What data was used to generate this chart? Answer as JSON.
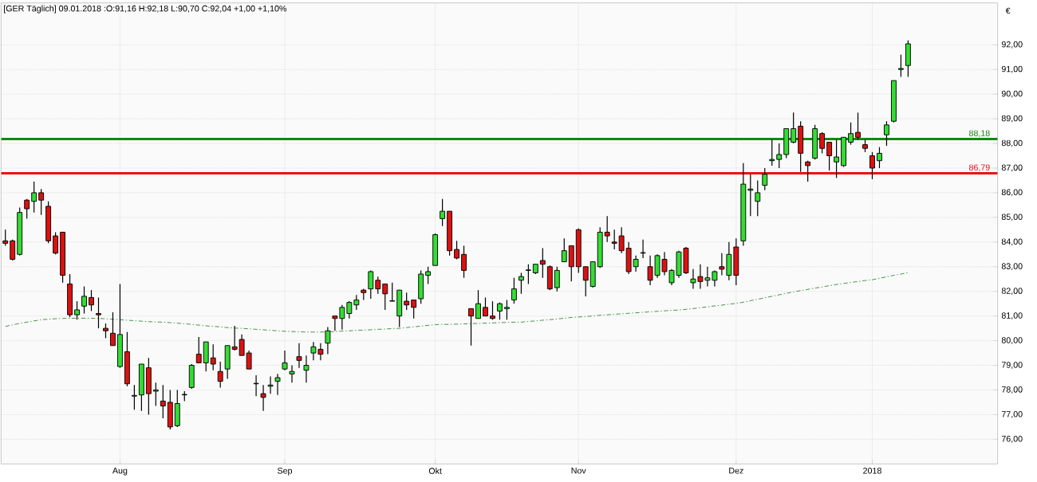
{
  "chart_data": {
    "type": "candlestick",
    "title": "[GER Täglich] 09.01.2018 :O:91,16 H:92,18 L:90,70 C:92,04 +1,00 +1,10%",
    "annotations": [
      "€"
    ],
    "grid": true,
    "ylim": [
      75,
      93.7
    ],
    "yticks": [
      {
        "value": 76,
        "label": "76,00"
      },
      {
        "value": 77,
        "label": "77,00"
      },
      {
        "value": 78,
        "label": "78,00"
      },
      {
        "value": 79,
        "label": "79,00"
      },
      {
        "value": 80,
        "label": "80,00"
      },
      {
        "value": 81,
        "label": "81,00"
      },
      {
        "value": 82,
        "label": "82,00"
      },
      {
        "value": 83,
        "label": "83,00"
      },
      {
        "value": 84,
        "label": "84,00"
      },
      {
        "value": 85,
        "label": "85,00"
      },
      {
        "value": 86,
        "label": "86,00"
      },
      {
        "value": 87,
        "label": "87,00"
      },
      {
        "value": 88,
        "label": "88,00"
      },
      {
        "value": 89,
        "label": "89,00"
      },
      {
        "value": 90,
        "label": "90,00"
      },
      {
        "value": 91,
        "label": "91,00"
      },
      {
        "value": 92,
        "label": "92,00"
      }
    ],
    "ref_lines": [
      {
        "axis": "y",
        "value": 88.18,
        "label": "88,18",
        "color": "#118811"
      },
      {
        "axis": "y",
        "value": 86.79,
        "label": "86,79",
        "color": "#ee1111"
      }
    ],
    "categories": [
      null,
      null,
      null,
      null,
      null,
      null,
      null,
      null,
      null,
      null,
      null,
      null,
      null,
      null,
      null,
      null,
      "Aug",
      null,
      null,
      null,
      null,
      null,
      null,
      null,
      null,
      null,
      null,
      null,
      null,
      null,
      null,
      null,
      null,
      null,
      null,
      null,
      null,
      null,
      null,
      "Sep",
      null,
      null,
      null,
      null,
      null,
      null,
      null,
      null,
      null,
      null,
      null,
      null,
      null,
      null,
      null,
      null,
      null,
      null,
      null,
      null,
      "Okt",
      null,
      null,
      null,
      null,
      null,
      null,
      null,
      null,
      null,
      null,
      null,
      null,
      null,
      null,
      null,
      null,
      null,
      null,
      null,
      "Nov",
      null,
      null,
      null,
      null,
      null,
      null,
      null,
      null,
      null,
      null,
      null,
      null,
      null,
      null,
      null,
      null,
      null,
      null,
      null,
      null,
      null,
      "Dez",
      null,
      null,
      null,
      null,
      null,
      null,
      null,
      null,
      null,
      null,
      null,
      null,
      null,
      null,
      null,
      null,
      null,
      null,
      "2018",
      null,
      null,
      null,
      null,
      null
    ],
    "ohlc": [
      [
        84.05,
        84.5,
        83.85,
        83.95
      ],
      [
        84.05,
        84.1,
        83.25,
        83.3
      ],
      [
        83.5,
        85.4,
        83.45,
        85.2
      ],
      [
        85.7,
        85.75,
        84.95,
        85.35
      ],
      [
        85.65,
        86.45,
        85.2,
        86.0
      ],
      [
        86.0,
        86.15,
        85.1,
        85.7
      ],
      [
        85.45,
        85.65,
        83.95,
        84.05
      ],
      [
        84.25,
        84.4,
        83.5,
        83.55
      ],
      [
        84.4,
        84.4,
        82.35,
        82.65
      ],
      [
        82.3,
        82.7,
        80.95,
        81.05
      ],
      [
        81.05,
        81.6,
        80.85,
        81.25
      ],
      [
        81.4,
        82.2,
        81.1,
        81.8
      ],
      [
        81.75,
        82.05,
        81.2,
        81.45
      ],
      [
        81.1,
        81.75,
        80.5,
        81.05
      ],
      [
        80.5,
        80.7,
        80.1,
        80.4
      ],
      [
        80.3,
        81.15,
        79.8,
        79.8
      ],
      [
        78.95,
        82.3,
        78.9,
        80.25
      ],
      [
        79.55,
        80.35,
        78.15,
        78.25
      ],
      [
        77.75,
        78.2,
        77.2,
        77.78
      ],
      [
        77.8,
        79.05,
        77.15,
        79.05
      ],
      [
        78.9,
        79.3,
        77.0,
        77.85
      ],
      [
        77.95,
        78.3,
        77.35,
        78.0
      ],
      [
        77.55,
        78.2,
        76.85,
        77.35
      ],
      [
        77.5,
        78.0,
        76.4,
        76.5
      ],
      [
        76.55,
        78.0,
        76.5,
        77.45
      ],
      [
        77.8,
        77.95,
        77.55,
        77.82
      ],
      [
        78.1,
        79.05,
        78.05,
        79.0
      ],
      [
        79.45,
        80.15,
        79.1,
        79.1
      ],
      [
        79.1,
        79.95,
        78.75,
        79.95
      ],
      [
        79.3,
        79.85,
        78.8,
        79.05
      ],
      [
        78.75,
        79.15,
        78.1,
        78.35
      ],
      [
        78.85,
        79.8,
        78.45,
        79.8
      ],
      [
        79.75,
        80.6,
        79.6,
        79.65
      ],
      [
        80.05,
        80.25,
        79.4,
        79.4
      ],
      [
        79.5,
        79.6,
        78.85,
        78.85
      ],
      [
        78.25,
        78.6,
        77.75,
        78.27
      ],
      [
        77.85,
        78.2,
        77.15,
        77.7
      ],
      [
        78.15,
        78.55,
        77.85,
        78.2
      ],
      [
        78.35,
        78.65,
        77.8,
        78.5
      ],
      [
        78.85,
        79.6,
        78.8,
        79.1
      ],
      [
        78.65,
        79.0,
        78.3,
        78.75
      ],
      [
        79.35,
        79.9,
        78.9,
        79.2
      ],
      [
        78.8,
        79.4,
        78.3,
        79.0
      ],
      [
        79.5,
        79.95,
        79.2,
        79.75
      ],
      [
        79.65,
        79.9,
        79.2,
        79.45
      ],
      [
        79.9,
        80.55,
        79.45,
        80.4
      ],
      [
        81.0,
        81.0,
        80.4,
        80.9
      ],
      [
        80.9,
        81.45,
        80.45,
        81.35
      ],
      [
        81.1,
        81.6,
        80.9,
        81.55
      ],
      [
        81.45,
        81.85,
        81.25,
        81.65
      ],
      [
        82.05,
        82.1,
        81.65,
        81.95
      ],
      [
        82.1,
        82.85,
        81.7,
        82.8
      ],
      [
        82.45,
        82.6,
        81.9,
        82.1
      ],
      [
        82.3,
        82.3,
        81.25,
        81.9
      ],
      [
        81.6,
        82.35,
        81.6,
        81.62
      ],
      [
        81.0,
        82.05,
        80.55,
        82.05
      ],
      [
        81.6,
        81.95,
        81.25,
        81.45
      ],
      [
        81.65,
        81.65,
        80.9,
        81.35
      ],
      [
        81.7,
        82.85,
        81.5,
        82.7
      ],
      [
        82.65,
        83.0,
        82.3,
        82.8
      ],
      [
        83.05,
        84.35,
        83.05,
        84.3
      ],
      [
        84.95,
        85.75,
        84.65,
        85.25
      ],
      [
        85.25,
        85.25,
        83.45,
        83.65
      ],
      [
        83.7,
        84.05,
        83.3,
        83.35
      ],
      [
        83.5,
        83.85,
        82.55,
        82.85
      ],
      [
        81.3,
        81.3,
        79.8,
        81.0
      ],
      [
        80.9,
        82.05,
        80.9,
        81.5
      ],
      [
        81.35,
        81.75,
        81.0,
        81.0
      ],
      [
        81.0,
        81.6,
        80.85,
        80.9
      ],
      [
        81.2,
        81.55,
        80.85,
        81.5
      ],
      [
        81.3,
        81.65,
        80.85,
        81.35
      ],
      [
        81.65,
        82.55,
        81.5,
        82.1
      ],
      [
        82.45,
        82.75,
        81.9,
        82.6
      ],
      [
        82.85,
        83.1,
        82.3,
        82.87
      ],
      [
        82.75,
        83.1,
        82.7,
        83.1
      ],
      [
        83.25,
        83.75,
        82.55,
        83.1
      ],
      [
        83.0,
        83.05,
        82.05,
        82.1
      ],
      [
        82.15,
        83.0,
        82.0,
        82.85
      ],
      [
        83.2,
        84.15,
        83.2,
        83.65
      ],
      [
        83.85,
        83.85,
        82.4,
        83.0
      ],
      [
        84.5,
        84.55,
        82.75,
        83.0
      ],
      [
        83.0,
        83.0,
        81.8,
        82.45
      ],
      [
        82.2,
        83.2,
        82.15,
        83.2
      ],
      [
        83.0,
        84.6,
        82.95,
        84.4
      ],
      [
        84.4,
        85.05,
        84.0,
        84.25
      ],
      [
        84.0,
        84.5,
        83.7,
        83.95
      ],
      [
        84.25,
        84.6,
        83.55,
        83.65
      ],
      [
        83.75,
        84.0,
        82.7,
        82.8
      ],
      [
        83.0,
        83.45,
        82.8,
        83.3
      ],
      [
        83.55,
        84.1,
        83.35,
        83.57
      ],
      [
        83.0,
        83.45,
        82.25,
        82.45
      ],
      [
        82.65,
        83.5,
        82.55,
        83.45
      ],
      [
        83.3,
        83.6,
        82.65,
        82.8
      ],
      [
        82.35,
        82.9,
        82.25,
        82.85
      ],
      [
        82.65,
        83.65,
        82.55,
        83.6
      ],
      [
        83.75,
        83.8,
        82.7,
        82.75
      ],
      [
        82.35,
        82.9,
        82.1,
        82.5
      ],
      [
        82.6,
        83.1,
        82.1,
        82.4
      ],
      [
        82.45,
        83.0,
        82.2,
        82.55
      ],
      [
        82.45,
        82.85,
        82.2,
        82.8
      ],
      [
        83.0,
        83.55,
        82.65,
        82.9
      ],
      [
        82.65,
        84.0,
        82.45,
        83.5
      ],
      [
        83.8,
        84.15,
        82.25,
        82.65
      ],
      [
        84.05,
        87.2,
        83.85,
        86.35
      ],
      [
        86.1,
        86.75,
        85.05,
        86.15
      ],
      [
        85.65,
        86.5,
        85.05,
        86.0
      ],
      [
        86.3,
        87.0,
        86.1,
        86.75
      ],
      [
        87.3,
        88.15,
        87.1,
        87.35
      ],
      [
        87.35,
        88.0,
        87.0,
        87.55
      ],
      [
        87.55,
        88.6,
        87.4,
        88.6
      ],
      [
        88.05,
        89.25,
        88.0,
        88.6
      ],
      [
        88.7,
        88.9,
        86.85,
        87.6
      ],
      [
        87.25,
        87.3,
        86.45,
        87.1
      ],
      [
        87.4,
        88.75,
        87.35,
        88.6
      ],
      [
        88.4,
        88.45,
        87.6,
        87.8
      ],
      [
        88.05,
        88.05,
        86.9,
        87.5
      ],
      [
        87.25,
        88.15,
        86.6,
        87.45
      ],
      [
        87.1,
        88.25,
        87.05,
        88.25
      ],
      [
        88.05,
        88.85,
        87.95,
        88.4
      ],
      [
        88.45,
        89.25,
        88.15,
        88.25
      ],
      [
        87.95,
        88.15,
        87.65,
        87.8
      ],
      [
        87.5,
        87.65,
        86.55,
        87.0
      ],
      [
        87.3,
        87.85,
        87.0,
        87.6
      ],
      [
        88.35,
        88.9,
        87.9,
        88.75
      ],
      [
        88.9,
        90.55,
        88.85,
        90.55
      ],
      [
        91.0,
        91.6,
        90.7,
        91.04
      ],
      [
        91.16,
        92.18,
        90.7,
        92.04
      ]
    ],
    "colors": [
      "#dd1111",
      "#dd1111",
      "#33dd33",
      "#dd1111",
      "#33dd33",
      "#dd1111",
      "#dd1111",
      "#dd1111",
      "#dd1111",
      "#dd1111",
      "#33dd33",
      "#33dd33",
      "#dd1111",
      "#dd1111",
      "#dd1111",
      "#dd1111",
      "#33dd33",
      "#dd1111",
      "#33dd33",
      "#33dd33",
      "#dd1111",
      "#33dd33",
      "#dd1111",
      "#dd1111",
      "#33dd33",
      "#33dd33",
      "#33dd33",
      "#dd1111",
      "#33dd33",
      "#dd1111",
      "#dd1111",
      "#33dd33",
      "#dd1111",
      "#dd1111",
      "#dd1111",
      "#33dd33",
      "#dd1111",
      "#33dd33",
      "#33dd33",
      "#33dd33",
      "#33dd33",
      "#dd1111",
      "#33dd33",
      "#33dd33",
      "#dd1111",
      "#33dd33",
      "#dd1111",
      "#33dd33",
      "#33dd33",
      "#33dd33",
      "#dd1111",
      "#33dd33",
      "#dd1111",
      "#dd1111",
      "#33dd33",
      "#33dd33",
      "#dd1111",
      "#dd1111",
      "#33dd33",
      "#33dd33",
      "#33dd33",
      "#33dd33",
      "#dd1111",
      "#dd1111",
      "#dd1111",
      "#dd1111",
      "#33dd33",
      "#dd1111",
      "#dd1111",
      "#33dd33",
      "#33dd33",
      "#33dd33",
      "#33dd33",
      "#33dd33",
      "#33dd33",
      "#dd1111",
      "#dd1111",
      "#33dd33",
      "#33dd33",
      "#dd1111",
      "#dd1111",
      "#dd1111",
      "#33dd33",
      "#33dd33",
      "#dd1111",
      "#dd1111",
      "#dd1111",
      "#dd1111",
      "#33dd33",
      "#33dd33",
      "#dd1111",
      "#33dd33",
      "#dd1111",
      "#33dd33",
      "#33dd33",
      "#dd1111",
      "#33dd33",
      "#dd1111",
      "#33dd33",
      "#33dd33",
      "#dd1111",
      "#33dd33",
      "#dd1111",
      "#33dd33",
      "#33dd33",
      "#33dd33",
      "#33dd33",
      "#33dd33",
      "#33dd33",
      "#33dd33",
      "#33dd33",
      "#dd1111",
      "#dd1111",
      "#33dd33",
      "#dd1111",
      "#dd1111",
      "#33dd33",
      "#33dd33",
      "#33dd33",
      "#dd1111",
      "#dd1111",
      "#dd1111",
      "#33dd33",
      "#33dd33",
      "#33dd33",
      "#33dd33",
      "#33dd33"
    ],
    "series": [
      {
        "type": "line",
        "color": "#1a7a1a",
        "line_style": "dashed",
        "values": [
          80.58,
          80.64,
          80.7,
          80.75,
          80.8,
          80.85,
          80.87,
          80.89,
          80.9,
          80.91,
          80.91,
          80.91,
          80.91,
          80.9,
          80.89,
          80.87,
          80.85,
          80.83,
          80.81,
          80.79,
          80.77,
          80.76,
          80.75,
          80.73,
          80.71,
          80.69,
          80.66,
          80.63,
          80.6,
          80.58,
          80.56,
          80.53,
          80.51,
          80.5,
          80.48,
          80.46,
          80.44,
          80.42,
          80.4,
          80.38,
          80.37,
          80.36,
          80.35,
          80.35,
          80.35,
          80.36,
          80.37,
          80.39,
          80.4,
          80.42,
          80.43,
          80.44,
          80.46,
          80.47,
          80.49,
          80.5,
          80.53,
          80.56,
          80.59,
          80.62,
          80.65,
          80.66,
          80.66,
          80.67,
          80.68,
          80.69,
          80.7,
          80.71,
          80.72,
          80.73,
          80.74,
          80.75,
          80.75,
          80.78,
          80.8,
          80.83,
          80.85,
          80.88,
          80.91,
          80.94,
          80.96,
          80.98,
          81.0,
          81.03,
          81.05,
          81.07,
          81.09,
          81.11,
          81.13,
          81.15,
          81.17,
          81.19,
          81.21,
          81.23,
          81.24,
          81.27,
          81.3,
          81.34,
          81.37,
          81.41,
          81.44,
          81.48,
          81.51,
          81.56,
          81.62,
          81.68,
          81.74,
          81.8,
          81.86,
          81.92,
          81.98,
          82.03,
          82.08,
          82.13,
          82.18,
          82.23,
          82.28,
          82.32,
          82.36,
          82.4,
          82.44,
          82.47,
          82.53,
          82.59,
          82.65,
          82.7,
          82.76
        ]
      }
    ]
  }
}
